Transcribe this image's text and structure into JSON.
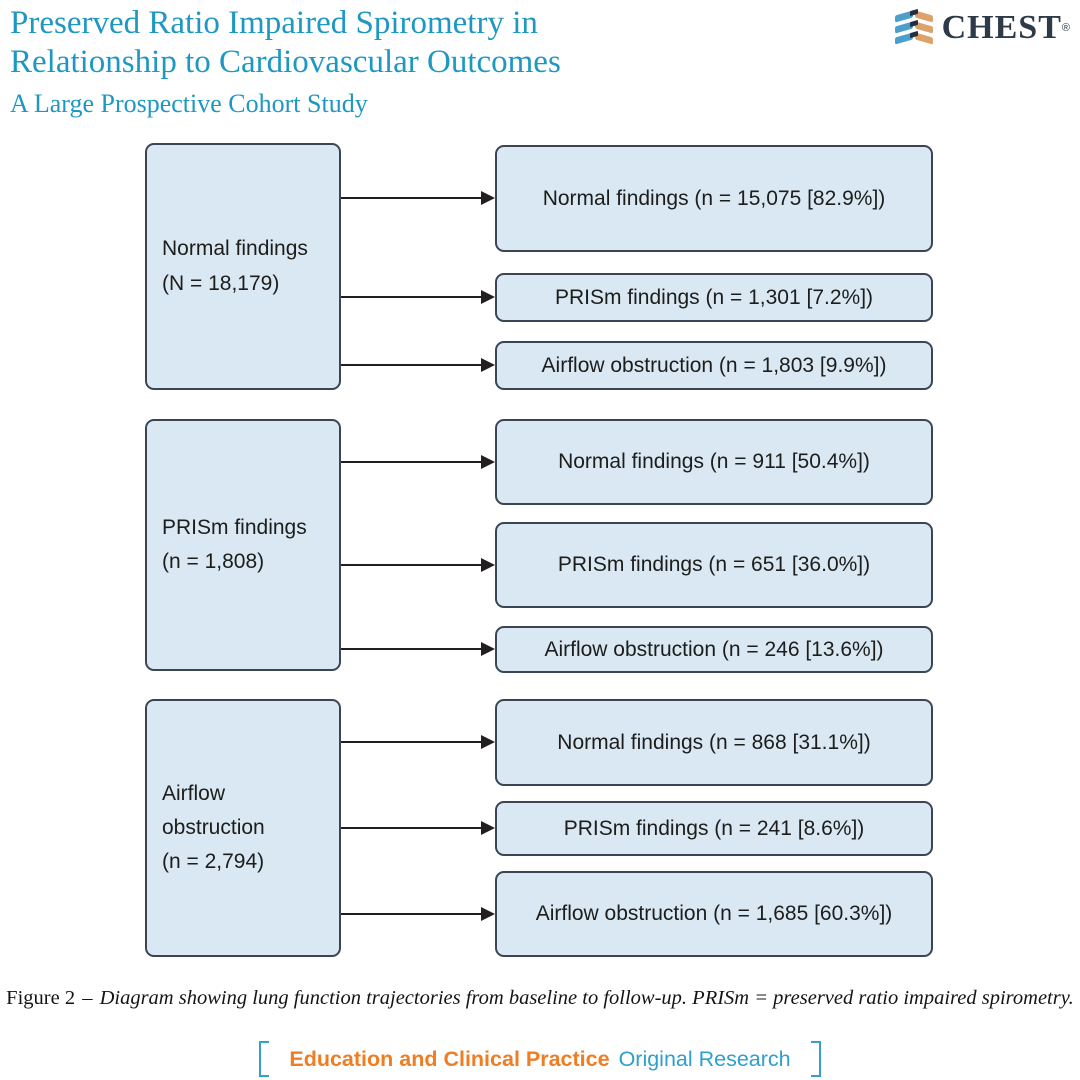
{
  "header": {
    "title_line1": "Preserved Ratio Impaired Spirometry in",
    "title_line2": "Relationship to Cardiovascular Outcomes",
    "subtitle": "A Large Prospective Cohort Study",
    "brand": {
      "name": "CHEST",
      "registered": "®"
    }
  },
  "diagram": {
    "groups": [
      {
        "source": {
          "lines": [
            "Normal findings",
            "(N = 18,179)"
          ]
        },
        "targets": [
          "Normal findings (n = 15,075 [82.9%])",
          "PRISm findings (n = 1,301 [7.2%])",
          "Airflow obstruction (n = 1,803 [9.9%])"
        ]
      },
      {
        "source": {
          "lines": [
            "PRISm findings",
            "(n = 1,808)"
          ]
        },
        "targets": [
          "Normal findings (n = 911 [50.4%])",
          "PRISm findings (n = 651 [36.0%])",
          "Airflow obstruction (n = 246 [13.6%])"
        ]
      },
      {
        "source": {
          "lines": [
            "Airflow",
            "obstruction",
            "(n = 2,794)"
          ]
        },
        "targets": [
          "Normal findings (n = 868 [31.1%])",
          "PRISm findings (n = 241 [8.6%])",
          "Airflow obstruction (n = 1,685 [60.3%])"
        ]
      }
    ]
  },
  "caption": {
    "label": "Figure 2",
    "dash": "–",
    "text": "Diagram showing lung function trajectories from baseline to follow-up. PRISm = preserved ratio impaired spirometry."
  },
  "footer": {
    "section": "Education and Clinical Practice",
    "category": "Original Research"
  },
  "icons": {
    "chest_logo_icon": "css-chevron-stripes",
    "arrowhead_icon": "▶",
    "bracket_left_icon": "[",
    "bracket_right_icon": "]"
  },
  "colors": {
    "title_teal": "#1e98c2",
    "brand_navy": "#2d3a48",
    "logo_blue": "#4aa0cb",
    "logo_tan": "#dda26b",
    "box_fill": "#d9e8f3",
    "box_border": "#3a4653",
    "arrow_black": "#231f20",
    "footer_orange": "#ef7d24",
    "footer_blue": "#2f9fcc"
  }
}
